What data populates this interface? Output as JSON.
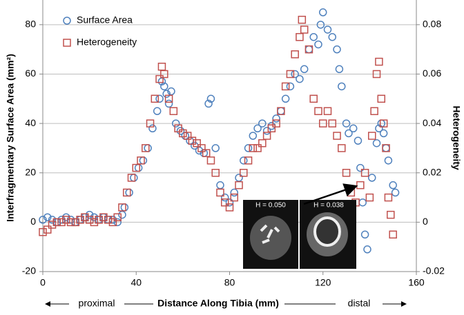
{
  "chart_data": {
    "type": "scatter",
    "xlabel": "Distance Along Tibia (mm)",
    "ylabel": "Interfragmentary Surface Area (mm²)",
    "y2label": "Heterogeneity",
    "annotations": [
      "proximal",
      "distal"
    ],
    "inset_labels": [
      "H = 0.050",
      "H = 0.038"
    ],
    "xlim": [
      0,
      160
    ],
    "xticks": [
      0,
      40,
      80,
      120,
      160
    ],
    "ylim": [
      -20,
      90
    ],
    "yticks": [
      -20,
      0,
      20,
      40,
      60,
      80
    ],
    "y2lim": [
      -0.02,
      0.09
    ],
    "y2ticks": [
      -0.02,
      0,
      0.02,
      0.04,
      0.06,
      0.08
    ],
    "grid": true,
    "legend": "upper left",
    "series": [
      {
        "name": "Surface Area",
        "color": "#4f81bd",
        "marker": "circle",
        "x": [
          0,
          2,
          4,
          6,
          8,
          10,
          12,
          14,
          16,
          18,
          20,
          22,
          24,
          26,
          28,
          30,
          32,
          34,
          35,
          37,
          39,
          41,
          43,
          45,
          47,
          49,
          50,
          51,
          52,
          53,
          54,
          55,
          57,
          59,
          61,
          63,
          65,
          67,
          69,
          71,
          72,
          74,
          76,
          78,
          80,
          82,
          84,
          86,
          88,
          90,
          92,
          94,
          96,
          98,
          100,
          102,
          104,
          106,
          108,
          110,
          112,
          114,
          116,
          118,
          119,
          120,
          122,
          124,
          126,
          127,
          128,
          130,
          131,
          133,
          135,
          136,
          137,
          138,
          139,
          141,
          143,
          144,
          145,
          146,
          147,
          148,
          150,
          151
        ],
        "values": [
          1,
          2,
          1,
          0,
          1,
          2,
          1,
          0,
          1,
          2,
          3,
          2,
          1,
          2,
          1,
          1,
          0,
          3,
          6,
          12,
          18,
          22,
          25,
          30,
          38,
          45,
          50,
          57,
          55,
          52,
          48,
          53,
          40,
          37,
          35,
          33,
          31,
          29,
          28,
          48,
          50,
          30,
          15,
          10,
          8,
          12,
          18,
          25,
          30,
          35,
          38,
          40,
          37,
          39,
          42,
          45,
          50,
          55,
          60,
          58,
          62,
          70,
          75,
          72,
          80,
          85,
          78,
          75,
          70,
          62,
          55,
          40,
          36,
          38,
          33,
          22,
          8,
          -5,
          -11,
          18,
          32,
          38,
          40,
          36,
          30,
          25,
          15,
          12
        ]
      },
      {
        "name": "Heterogeneity",
        "color": "#c0504d",
        "marker": "square",
        "axis": "y2",
        "x": [
          0,
          2,
          4,
          6,
          8,
          10,
          12,
          14,
          16,
          18,
          20,
          22,
          24,
          26,
          28,
          30,
          32,
          34,
          36,
          38,
          40,
          42,
          44,
          46,
          48,
          50,
          51,
          52,
          54,
          56,
          58,
          60,
          62,
          64,
          66,
          68,
          70,
          72,
          74,
          76,
          78,
          80,
          82,
          84,
          86,
          88,
          90,
          92,
          94,
          96,
          98,
          100,
          102,
          104,
          106,
          108,
          110,
          111,
          112,
          114,
          116,
          118,
          120,
          122,
          124,
          126,
          128,
          130,
          132,
          134,
          136,
          138,
          140,
          141,
          142,
          143,
          144,
          145,
          146,
          147,
          148,
          149,
          150
        ],
        "values": [
          -0.004,
          -0.003,
          -0.001,
          0,
          0,
          0.001,
          0,
          0,
          0.001,
          0.002,
          0.001,
          0,
          0.001,
          0.002,
          0.001,
          0,
          0.002,
          0.006,
          0.012,
          0.018,
          0.022,
          0.025,
          0.03,
          0.04,
          0.05,
          0.058,
          0.063,
          0.06,
          0.05,
          0.045,
          0.038,
          0.036,
          0.035,
          0.033,
          0.032,
          0.03,
          0.028,
          0.025,
          0.02,
          0.012,
          0.008,
          0.006,
          0.01,
          0.015,
          0.02,
          0.025,
          0.03,
          0.03,
          0.032,
          0.035,
          0.038,
          0.04,
          0.045,
          0.055,
          0.06,
          0.068,
          0.075,
          0.082,
          0.078,
          0.07,
          0.05,
          0.045,
          0.04,
          0.045,
          0.04,
          0.035,
          0.03,
          0.02,
          0.012,
          0.008,
          0.015,
          0.02,
          0.01,
          0.035,
          0.045,
          0.06,
          0.065,
          0.05,
          0.04,
          0.03,
          0.01,
          0.003,
          -0.005
        ]
      }
    ]
  }
}
